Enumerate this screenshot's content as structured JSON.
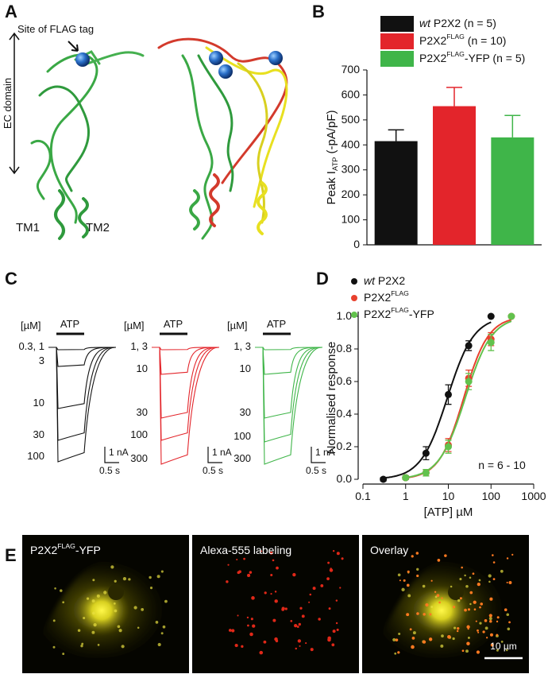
{
  "panel_labels": [
    "A",
    "B",
    "C",
    "D",
    "E"
  ],
  "structure": {
    "flag_site": "Site of FLAG tag",
    "domain": "EC domain",
    "tm1": "TM1",
    "tm2": "TM2"
  },
  "traces": {
    "unit": "[µM]",
    "stimulus": "ATP",
    "scale_current": "1 nA",
    "scale_time": "0.5 s",
    "groups": [
      {
        "color": "#111111",
        "concentrations": [
          "0.3, 1",
          "3",
          "10",
          "30",
          "100"
        ]
      },
      {
        "color": "#e3252b",
        "concentrations": [
          "1, 3",
          "10",
          "30",
          "100",
          "300"
        ]
      },
      {
        "color": "#3fb549",
        "concentrations": [
          "1, 3",
          "10",
          "30",
          "100",
          "300"
        ]
      }
    ]
  },
  "imaging": {
    "panels": [
      "P2X2FLAG-YFP",
      "Alexa-555 labeling",
      "Overlay"
    ],
    "scale_bar": "10 µm"
  },
  "chart_data": [
    {
      "type": "bar",
      "ylabel": "Peak IATP (-pA/pF)",
      "ylim": [
        0,
        700
      ],
      "yticks": [
        0,
        100,
        200,
        300,
        400,
        500,
        600,
        700
      ],
      "series": [
        {
          "name": "wt P2X2 (n = 5)",
          "color": "#111111",
          "values": [
            415
          ],
          "errors": [
            45
          ]
        },
        {
          "name": "P2X2FLAG (n = 10)",
          "color": "#e3252b",
          "values": [
            555
          ],
          "errors": [
            75
          ]
        },
        {
          "name": "P2X2FLAG-YFP (n = 5)",
          "color": "#3fb549",
          "values": [
            430
          ],
          "errors": [
            88
          ]
        }
      ]
    },
    {
      "type": "scatter",
      "xlabel": "[ATP] µM",
      "ylabel": "Normalised response",
      "log_x": true,
      "annotation": "n = 6 - 10",
      "xlim": [
        0.1,
        1000
      ],
      "xticks": [
        0.1,
        1,
        10,
        100,
        1000
      ],
      "ylim": [
        0,
        1.0
      ],
      "yticks": [
        {
          "value": 0,
          "label": "0.0"
        },
        0.2,
        0.4,
        0.6,
        0.8,
        {
          "value": 1.0,
          "label": "1.0"
        }
      ],
      "series": [
        {
          "name": "wt P2X2",
          "color": "#111111",
          "x": [
            0.3,
            1,
            3,
            10,
            30,
            100
          ],
          "values": [
            0.0,
            0.01,
            0.16,
            0.52,
            0.82,
            1.0
          ],
          "errors": [
            0.01,
            0.01,
            0.04,
            0.06,
            0.03,
            0.0
          ],
          "fit": {
            "ec50": 9.5,
            "hill": 1.4
          }
        },
        {
          "name": "P2X2FLAG",
          "color": "#e8412e",
          "x": [
            1,
            3,
            10,
            30,
            100,
            300
          ],
          "values": [
            0.01,
            0.04,
            0.21,
            0.62,
            0.86,
            1.0
          ],
          "errors": [
            0.01,
            0.02,
            0.04,
            0.05,
            0.04,
            0.0
          ],
          "fit": {
            "ec50": 23,
            "hill": 1.5
          }
        },
        {
          "name": "P2X2FLAG-YFP",
          "color": "#62c24d",
          "x": [
            1,
            3,
            10,
            30,
            100,
            300
          ],
          "values": [
            0.01,
            0.04,
            0.2,
            0.6,
            0.84,
            1.0
          ],
          "errors": [
            0.01,
            0.02,
            0.04,
            0.05,
            0.05,
            0.0
          ],
          "fit": {
            "ec50": 25,
            "hill": 1.4
          }
        }
      ]
    }
  ]
}
